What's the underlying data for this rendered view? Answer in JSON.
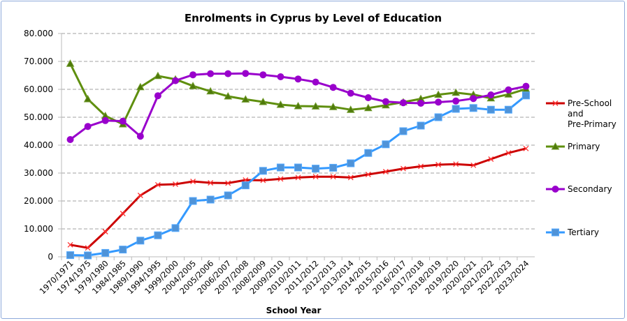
{
  "chart_data": {
    "type": "line",
    "title": "Enrolments in Cyprus by Level of Education",
    "xlabel": "School Year",
    "ylabel": "",
    "ylim": [
      0,
      80000
    ],
    "yticks": [
      "0",
      "10.000",
      "20.000",
      "30.000",
      "40.000",
      "50.000",
      "60.000",
      "70.000",
      "80.000"
    ],
    "grid": "horizontal dashed",
    "legend": "right",
    "categories": [
      "1970/1971",
      "1974/1975",
      "1979/1980",
      "1984/1985",
      "1989/1990",
      "1994/1995",
      "1999/2000",
      "2004/2005",
      "2005/2006",
      "2006/2007",
      "2007/2008",
      "2008/2009",
      "2009/2010",
      "2010/2011",
      "2011/2012",
      "2012/2013",
      "2013/2014",
      "2014/2015",
      "2015/2016",
      "2016/2017",
      "2017/2018",
      "2018/2019",
      "2019/2020",
      "2020/2021",
      "2021/2022",
      "2022/2023",
      "2023/2024"
    ],
    "series": [
      {
        "name": "Pre-School and Pre-Primary",
        "legend_lines": [
          "Pre-School",
          "and",
          "Pre-Primary"
        ],
        "color": "#cc0000",
        "marker": "x",
        "values": [
          4300,
          3200,
          9000,
          15500,
          22000,
          25800,
          26000,
          27000,
          26500,
          26400,
          27500,
          27400,
          27900,
          28400,
          28700,
          28700,
          28400,
          29500,
          30500,
          31600,
          32400,
          33000,
          33200,
          32800,
          35000,
          37200,
          38800
        ]
      },
      {
        "name": "Primary",
        "legend_lines": [
          "Primary"
        ],
        "color": "#5f8f0e",
        "marker": "triangle",
        "values": [
          69200,
          56500,
          50500,
          47500,
          60800,
          64800,
          63600,
          61200,
          59300,
          57500,
          56400,
          55500,
          54500,
          54000,
          53900,
          53700,
          52700,
          53300,
          54300,
          55400,
          56600,
          58100,
          58800,
          58100,
          56800,
          58200,
          60100
        ]
      },
      {
        "name": "Secondary",
        "legend_lines": [
          "Secondary"
        ],
        "color": "#9900cc",
        "marker": "circle",
        "values": [
          42000,
          46700,
          48800,
          48600,
          43200,
          57700,
          63100,
          65200,
          65600,
          65600,
          65700,
          65200,
          64500,
          63700,
          62600,
          60700,
          58600,
          57000,
          55600,
          55200,
          55000,
          55400,
          55800,
          56700,
          58000,
          59800,
          61100
        ]
      },
      {
        "name": "Tertiary",
        "legend_lines": [
          "Tertiary"
        ],
        "color": "#3399ff",
        "marker": "square",
        "values": [
          600,
          500,
          1400,
          2600,
          5800,
          7700,
          10300,
          20000,
          20500,
          22000,
          25600,
          30800,
          32000,
          32000,
          31600,
          31900,
          33500,
          37200,
          40300,
          45000,
          47000,
          50000,
          53000,
          53300,
          52700,
          52700,
          57800
        ]
      }
    ]
  }
}
